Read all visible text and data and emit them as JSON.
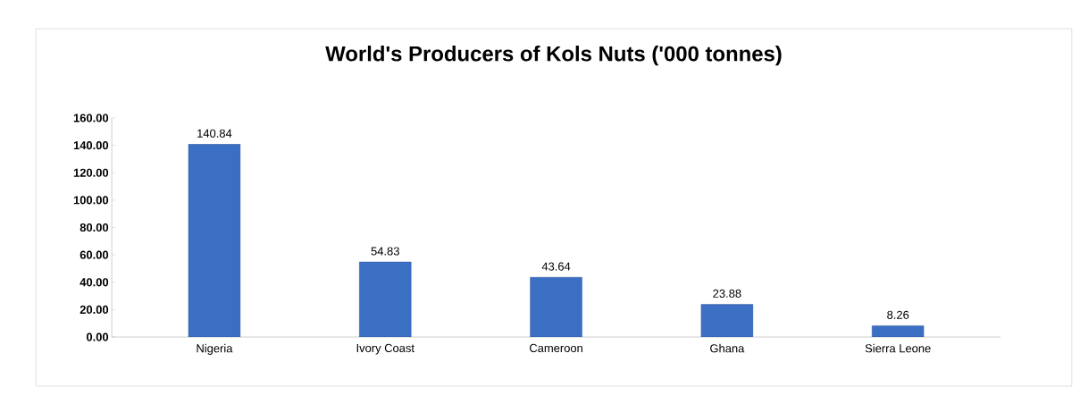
{
  "chart_data": {
    "type": "bar",
    "title": "World's Producers of Kols Nuts ('000 tonnes)",
    "categories": [
      "Nigeria",
      "Ivory Coast",
      "Cameroon",
      "Ghana",
      "Sierra Leone"
    ],
    "values": [
      140.84,
      54.83,
      43.64,
      23.88,
      8.26
    ],
    "color": "#3a6fc4",
    "ylim": [
      0,
      160
    ],
    "yticks": [
      {
        "value": 0,
        "label": "0.00"
      },
      {
        "value": 20,
        "label": "20.00"
      },
      {
        "value": 40,
        "label": "40.00"
      },
      {
        "value": 60,
        "label": "60.00"
      },
      {
        "value": 80,
        "label": "80.00"
      },
      {
        "value": 100,
        "label": "100.00"
      },
      {
        "value": 120,
        "label": "120.00"
      },
      {
        "value": 140,
        "label": "140.00"
      },
      {
        "value": 160,
        "label": "160.00"
      }
    ],
    "data_labels": true
  }
}
